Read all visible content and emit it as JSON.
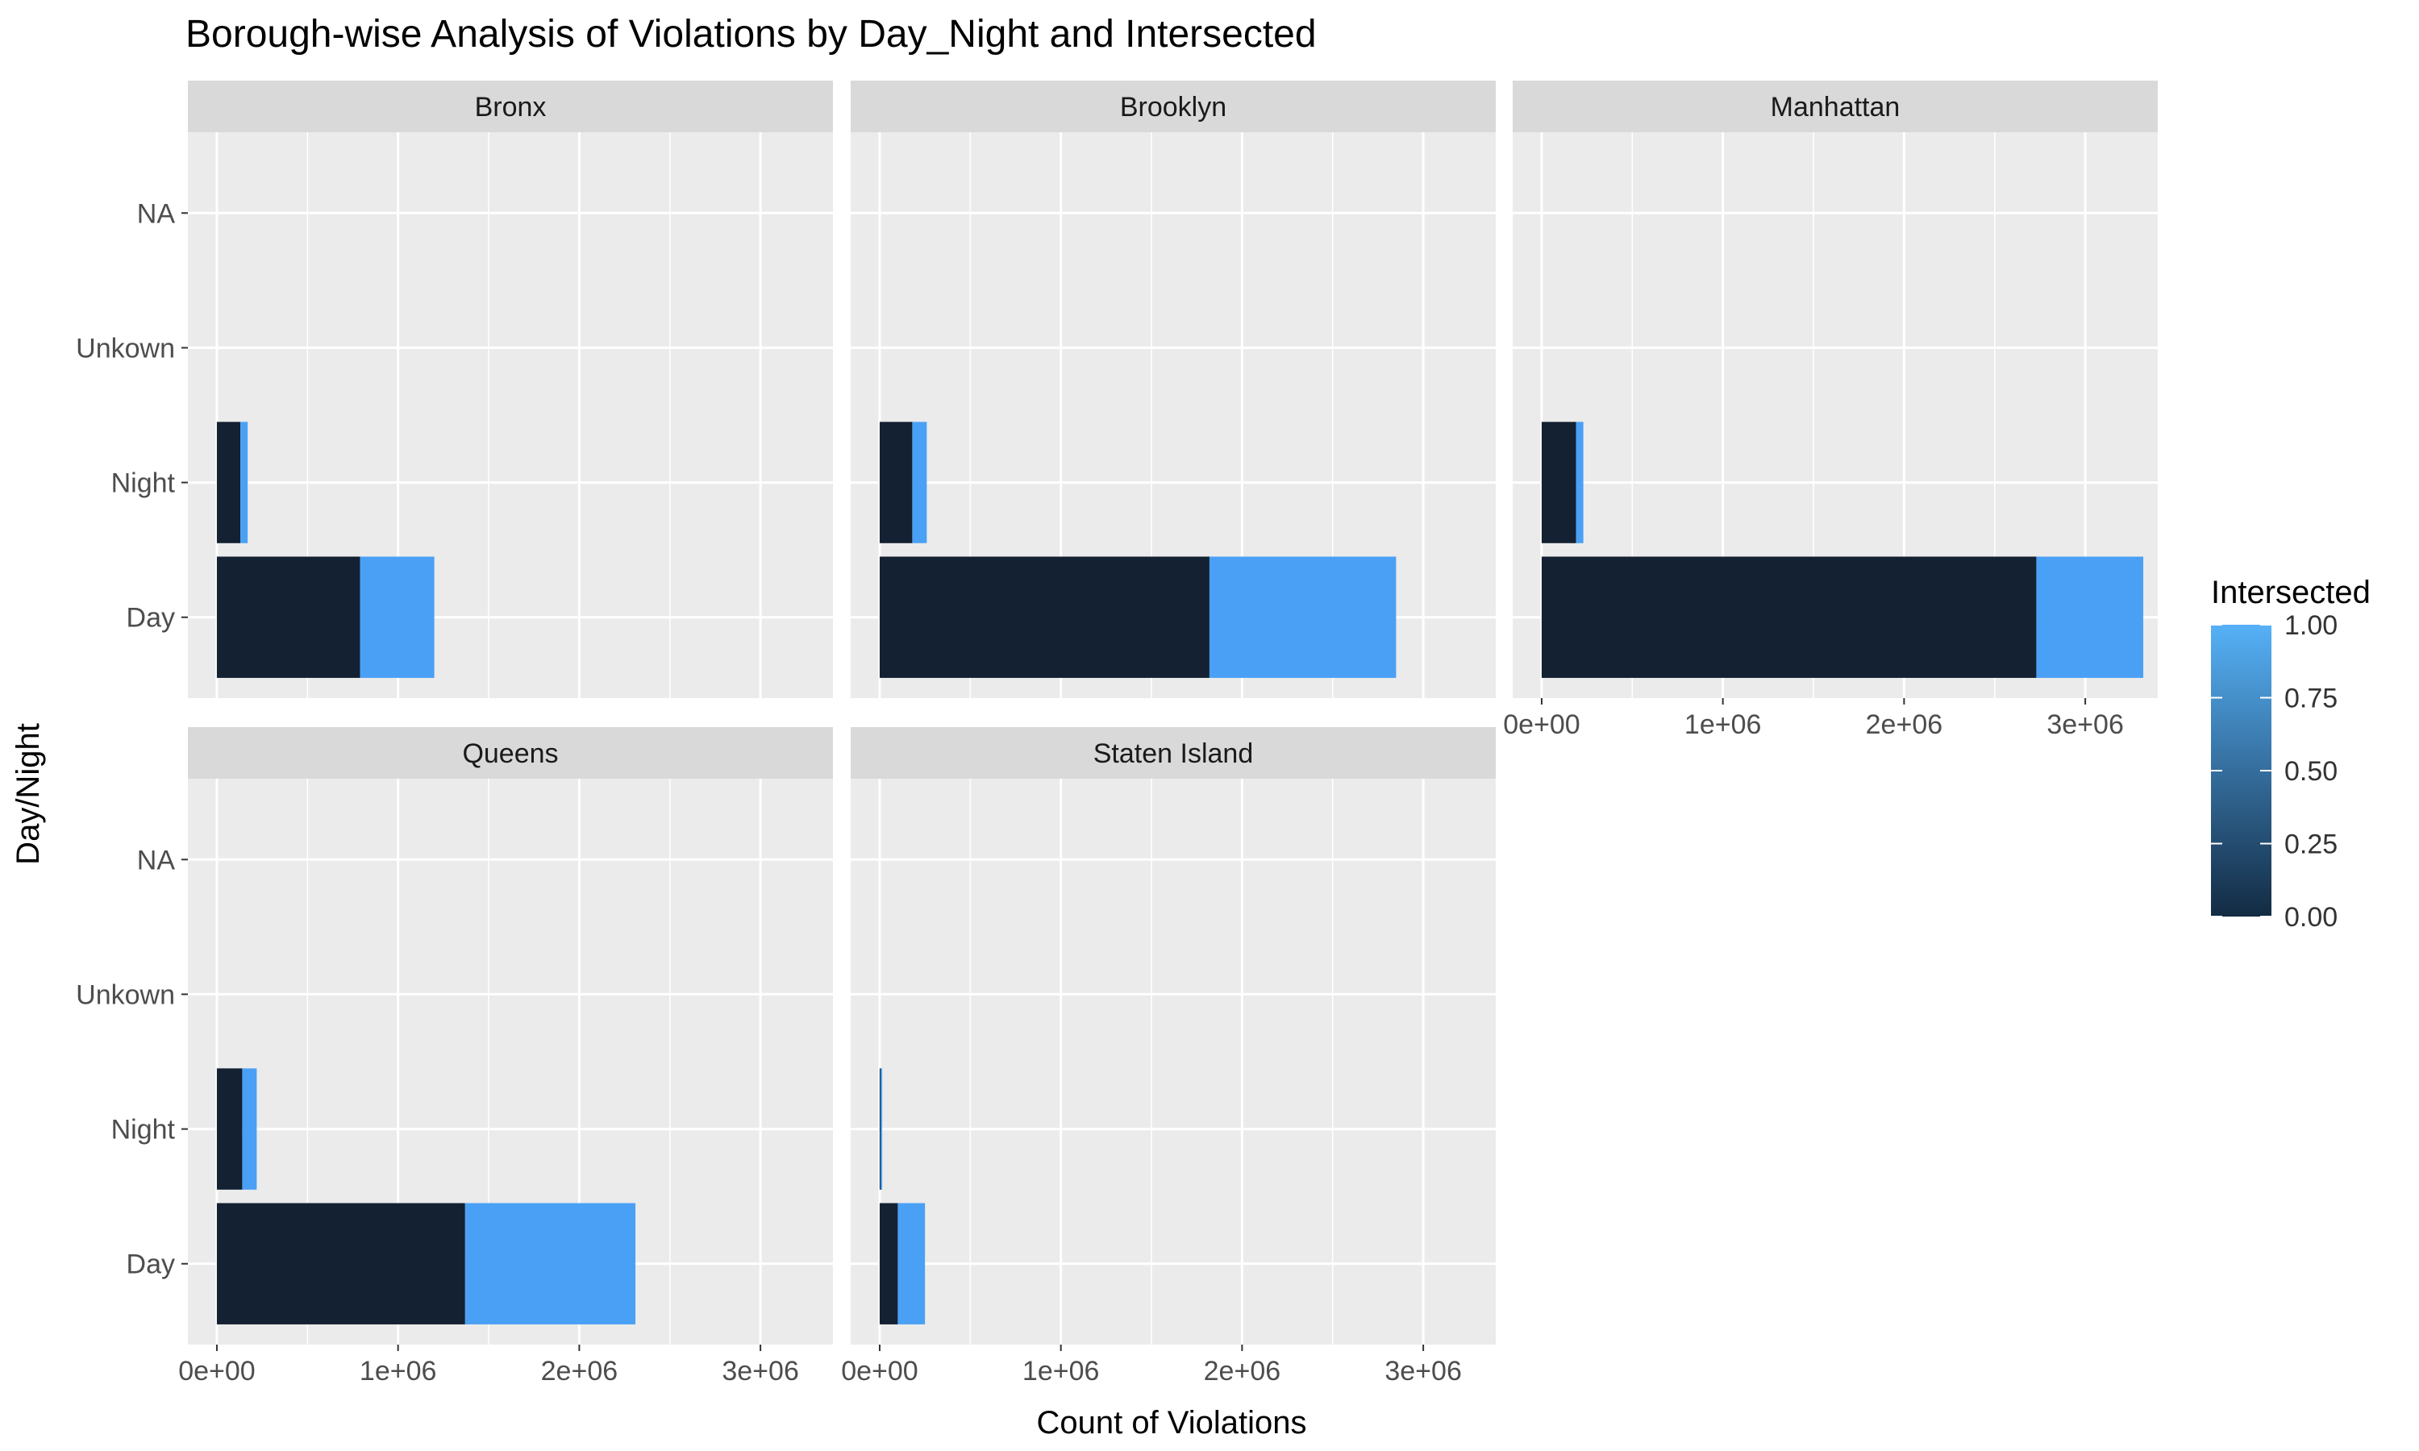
{
  "chart_data": {
    "type": "bar",
    "orientation": "horizontal",
    "stacked": true,
    "title": "Borough-wise Analysis of Violations by Day_Night and Intersected",
    "xlabel": "Count of Violations",
    "ylabel": "Day/Night",
    "categories": [
      "Day",
      "Night",
      "Unkown",
      "NA"
    ],
    "x_ticks": [
      "0e+00",
      "1e+06",
      "2e+06",
      "3e+06"
    ],
    "x_tick_values": [
      0,
      1000000,
      2000000,
      3000000
    ],
    "xlim": [
      -160000,
      3400000
    ],
    "legend": {
      "title": "Intersected",
      "position": "right",
      "ticks": [
        "0.00",
        "0.25",
        "0.50",
        "0.75",
        "1.00"
      ],
      "colors": {
        "low": "#132b43",
        "high": "#56b1f7"
      }
    },
    "series": [
      {
        "name": "0",
        "color": "#132132"
      },
      {
        "name": "1",
        "color": "#4aa0f5"
      }
    ],
    "facets": [
      {
        "name": "Bronx",
        "values": {
          "Day": [
            790000,
            410000
          ],
          "Night": [
            130000,
            40000
          ]
        }
      },
      {
        "name": "Brooklyn",
        "values": {
          "Day": [
            1820000,
            1030000
          ],
          "Night": [
            180000,
            80000
          ]
        }
      },
      {
        "name": "Manhattan",
        "values": {
          "Day": [
            2730000,
            590000
          ],
          "Night": [
            190000,
            40000
          ]
        }
      },
      {
        "name": "Queens",
        "values": {
          "Day": [
            1370000,
            940000
          ],
          "Night": [
            140000,
            80000
          ]
        }
      },
      {
        "name": "Staten Island",
        "values": {
          "Day": [
            100000,
            150000
          ],
          "Night": [
            5000,
            3000
          ]
        }
      }
    ]
  }
}
